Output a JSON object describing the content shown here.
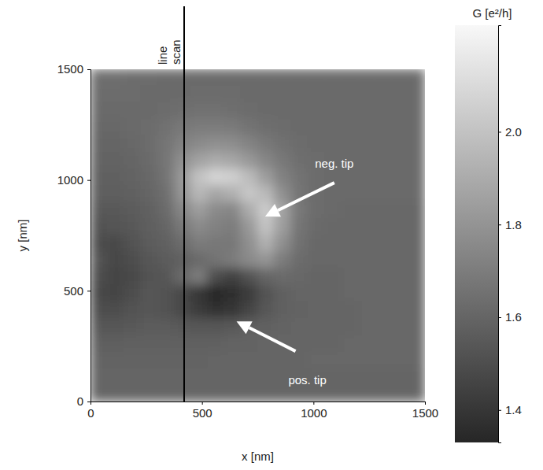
{
  "chart_data": {
    "type": "heatmap",
    "x_label": "x [nm]",
    "y_label": "y [nm]",
    "xlim": [
      0,
      1500
    ],
    "ylim": [
      0,
      1500
    ],
    "xticks": [
      0,
      500,
      1000,
      1500
    ],
    "yticks": [
      0,
      500,
      1000,
      1500
    ],
    "x": [
      37.5,
      112.5,
      187.5,
      262.5,
      337.5,
      412.5,
      487.5,
      562.5,
      637.5,
      712.5,
      787.5,
      862.5,
      937.5,
      1012.5,
      1087.5,
      1162.5,
      1237.5,
      1312.5,
      1387.5,
      1462.5
    ],
    "y": [
      1462.5,
      1387.5,
      1312.5,
      1237.5,
      1162.5,
      1087.5,
      1012.5,
      937.5,
      862.5,
      787.5,
      712.5,
      637.5,
      562.5,
      487.5,
      412.5,
      337.5,
      262.5,
      187.5,
      112.5,
      37.5
    ],
    "z": [
      [
        1.64,
        1.64,
        1.63,
        1.63,
        1.62,
        1.62,
        1.62,
        1.62,
        1.62,
        1.62,
        1.62,
        1.62,
        1.62,
        1.62,
        1.62,
        1.62,
        1.62,
        1.62,
        1.62,
        1.62
      ],
      [
        1.63,
        1.63,
        1.63,
        1.62,
        1.62,
        1.62,
        1.63,
        1.63,
        1.63,
        1.62,
        1.62,
        1.62,
        1.62,
        1.62,
        1.62,
        1.62,
        1.62,
        1.62,
        1.62,
        1.62
      ],
      [
        1.62,
        1.62,
        1.62,
        1.62,
        1.63,
        1.64,
        1.65,
        1.65,
        1.64,
        1.63,
        1.62,
        1.62,
        1.62,
        1.62,
        1.62,
        1.62,
        1.62,
        1.62,
        1.62,
        1.62
      ],
      [
        1.61,
        1.61,
        1.62,
        1.63,
        1.65,
        1.68,
        1.7,
        1.7,
        1.69,
        1.66,
        1.64,
        1.63,
        1.62,
        1.62,
        1.62,
        1.62,
        1.62,
        1.62,
        1.62,
        1.62
      ],
      [
        1.6,
        1.6,
        1.61,
        1.63,
        1.67,
        1.72,
        1.76,
        1.78,
        1.77,
        1.73,
        1.68,
        1.65,
        1.63,
        1.62,
        1.62,
        1.62,
        1.62,
        1.62,
        1.62,
        1.62
      ],
      [
        1.59,
        1.59,
        1.6,
        1.62,
        1.67,
        1.78,
        1.86,
        1.9,
        1.88,
        1.82,
        1.74,
        1.68,
        1.64,
        1.63,
        1.62,
        1.62,
        1.62,
        1.62,
        1.62,
        1.62
      ],
      [
        1.58,
        1.58,
        1.59,
        1.61,
        1.66,
        1.82,
        2.0,
        2.08,
        2.06,
        1.97,
        1.84,
        1.72,
        1.66,
        1.63,
        1.62,
        1.62,
        1.62,
        1.62,
        1.62,
        1.62
      ],
      [
        1.57,
        1.57,
        1.58,
        1.6,
        1.64,
        1.8,
        1.95,
        1.88,
        1.92,
        2.02,
        1.96,
        1.78,
        1.67,
        1.63,
        1.62,
        1.62,
        1.62,
        1.62,
        1.62,
        1.62
      ],
      [
        1.55,
        1.55,
        1.56,
        1.58,
        1.62,
        1.74,
        1.84,
        1.76,
        1.74,
        1.9,
        2.04,
        1.86,
        1.68,
        1.63,
        1.62,
        1.61,
        1.61,
        1.61,
        1.61,
        1.61
      ],
      [
        1.52,
        1.53,
        1.55,
        1.57,
        1.6,
        1.68,
        1.76,
        1.72,
        1.7,
        1.82,
        2.0,
        1.84,
        1.67,
        1.62,
        1.61,
        1.61,
        1.61,
        1.61,
        1.61,
        1.61
      ],
      [
        1.5,
        1.48,
        1.52,
        1.56,
        1.58,
        1.63,
        1.7,
        1.68,
        1.68,
        1.78,
        1.92,
        1.78,
        1.65,
        1.61,
        1.61,
        1.61,
        1.61,
        1.61,
        1.61,
        1.61
      ],
      [
        1.52,
        1.47,
        1.5,
        1.54,
        1.56,
        1.58,
        1.62,
        1.66,
        1.7,
        1.76,
        1.8,
        1.7,
        1.63,
        1.61,
        1.61,
        1.61,
        1.61,
        1.61,
        1.61,
        1.61
      ],
      [
        1.5,
        1.46,
        1.48,
        1.52,
        1.54,
        1.62,
        1.7,
        1.5,
        1.44,
        1.52,
        1.6,
        1.62,
        1.61,
        1.6,
        1.6,
        1.61,
        1.61,
        1.61,
        1.61,
        1.61
      ],
      [
        1.48,
        1.46,
        1.5,
        1.54,
        1.52,
        1.48,
        1.4,
        1.34,
        1.36,
        1.42,
        1.52,
        1.58,
        1.6,
        1.6,
        1.6,
        1.61,
        1.61,
        1.61,
        1.61,
        1.61
      ],
      [
        1.5,
        1.5,
        1.52,
        1.54,
        1.52,
        1.48,
        1.42,
        1.38,
        1.4,
        1.46,
        1.54,
        1.58,
        1.59,
        1.6,
        1.6,
        1.6,
        1.61,
        1.61,
        1.61,
        1.61
      ],
      [
        1.54,
        1.54,
        1.55,
        1.56,
        1.56,
        1.55,
        1.54,
        1.54,
        1.55,
        1.57,
        1.58,
        1.59,
        1.6,
        1.6,
        1.6,
        1.6,
        1.61,
        1.61,
        1.61,
        1.61
      ],
      [
        1.57,
        1.57,
        1.58,
        1.58,
        1.58,
        1.58,
        1.58,
        1.58,
        1.59,
        1.59,
        1.6,
        1.6,
        1.6,
        1.6,
        1.6,
        1.61,
        1.61,
        1.61,
        1.61,
        1.61
      ],
      [
        1.59,
        1.59,
        1.59,
        1.59,
        1.59,
        1.59,
        1.59,
        1.6,
        1.6,
        1.6,
        1.6,
        1.6,
        1.6,
        1.61,
        1.61,
        1.61,
        1.61,
        1.61,
        1.61,
        1.61
      ],
      [
        1.6,
        1.6,
        1.6,
        1.6,
        1.6,
        1.6,
        1.6,
        1.6,
        1.6,
        1.6,
        1.6,
        1.6,
        1.6,
        1.6,
        1.6,
        1.6,
        1.6,
        1.6,
        1.6,
        1.6
      ],
      [
        1.6,
        1.6,
        1.6,
        1.6,
        1.6,
        1.6,
        1.6,
        1.6,
        1.6,
        1.6,
        1.6,
        1.6,
        1.6,
        1.6,
        1.6,
        1.6,
        1.6,
        1.6,
        1.6,
        1.6
      ]
    ],
    "colorbar": {
      "label": "G [e²/h]",
      "range": [
        1.33,
        2.23
      ],
      "ticks": [
        1.4,
        1.6,
        1.8,
        {
          "value": 2.0,
          "label": "2.0"
        }
      ]
    },
    "line_scan": {
      "label": "line scan",
      "x": 420
    },
    "annotations": [
      {
        "text": "neg. tip",
        "x": 783,
        "y": 835
      },
      {
        "text": "pos. tip",
        "x": 655,
        "y": 362
      }
    ]
  }
}
